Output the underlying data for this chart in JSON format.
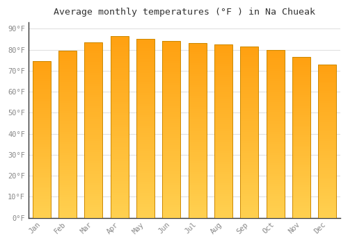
{
  "title": "Average monthly temperatures (°F ) in Na Chueak",
  "months": [
    "Jan",
    "Feb",
    "Mar",
    "Apr",
    "May",
    "Jun",
    "Jul",
    "Aug",
    "Sep",
    "Oct",
    "Nov",
    "Dec"
  ],
  "values": [
    74.5,
    79.5,
    83.5,
    86.5,
    85.0,
    84.0,
    83.0,
    82.5,
    81.5,
    80.0,
    76.5,
    73.0
  ],
  "bar_color_bottom": "#FFD050",
  "bar_color_top": "#FFA010",
  "edge_color": "#CC8800",
  "yticks": [
    0,
    10,
    20,
    30,
    40,
    50,
    60,
    70,
    80,
    90
  ],
  "ytick_labels": [
    "0°F",
    "10°F",
    "20°F",
    "30°F",
    "40°F",
    "50°F",
    "60°F",
    "70°F",
    "80°F",
    "90°F"
  ],
  "ylim": [
    0,
    93
  ],
  "background_color": "#ffffff",
  "plot_bg_color": "#ffffff",
  "grid_color": "#e0e0e0",
  "title_fontsize": 9.5,
  "tick_fontsize": 7.5,
  "tick_color": "#888888",
  "spine_color": "#333333"
}
